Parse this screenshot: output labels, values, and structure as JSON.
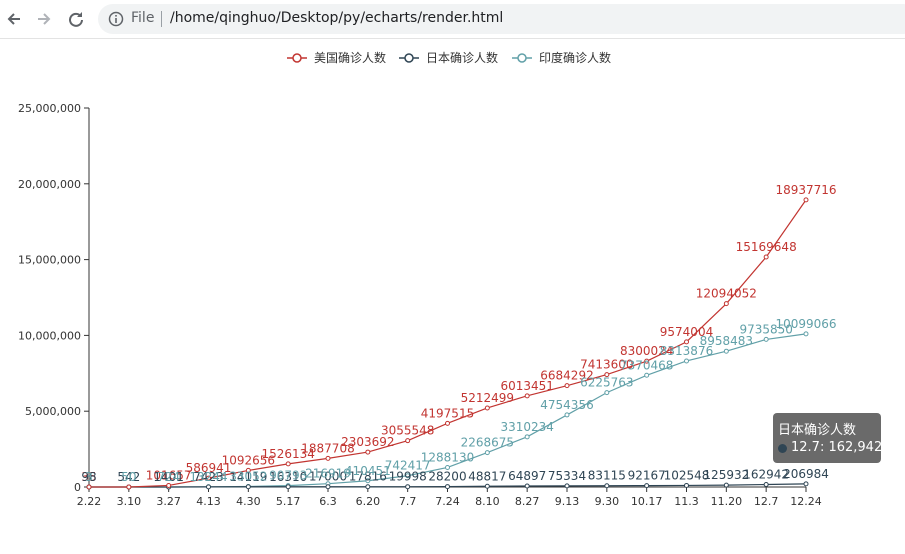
{
  "browser": {
    "file_label": "File",
    "url": "/home/qinghuo/Desktop/py/echarts/render.html",
    "icons": [
      "back-arrow-icon",
      "forward-arrow-icon",
      "reload-icon",
      "info-icon"
    ]
  },
  "tooltip": {
    "series_name": "日本确诊人数",
    "value_text": "12.7: 162,942",
    "dot_color": "#2f4554"
  },
  "chart_data": {
    "type": "line",
    "categories": [
      "2.22",
      "3.10",
      "3.27",
      "4.13",
      "4.30",
      "5.17",
      "6.3",
      "6.20",
      "7.7",
      "7.24",
      "8.10",
      "8.27",
      "9.13",
      "9.30",
      "10.17",
      "11.3",
      "11.20",
      "12.7",
      "12.24"
    ],
    "y_ticks": [
      "0",
      "5,000,000",
      "10,000,000",
      "15,000,000",
      "20,000,000",
      "25,000,000"
    ],
    "ylim": [
      0,
      25000000
    ],
    "legend_position": "top-center",
    "grid": false,
    "series": [
      {
        "name": "美国确诊人数",
        "color": "#c23531",
        "values": [
          35,
          472,
          101657,
          586941,
          1092656,
          1526134,
          1887708,
          2303692,
          3055548,
          4197515,
          5212499,
          6013451,
          6684292,
          7413600,
          8300024,
          9574004,
          12094052,
          15169648,
          18937716
        ]
      },
      {
        "name": "日本确诊人数",
        "color": "#2f4554",
        "values": [
          98,
          542,
          1401,
          7423,
          14119,
          16310,
          17000,
          17816,
          19998,
          28200,
          48817,
          64897,
          75334,
          83115,
          92167,
          102548,
          125932,
          162942,
          206984
        ]
      },
      {
        "name": "印度确诊人数",
        "color": "#61a0a8",
        "values": [
          3,
          50,
          724,
          13244,
          33052,
          90793,
          216919,
          410451,
          742417,
          1288130,
          2268675,
          3310234,
          4754356,
          6225763,
          7370468,
          8313876,
          8958483,
          9735850,
          10099066
        ]
      }
    ],
    "data_labels": [
      {
        "series": 0,
        "index": 0,
        "text": "35"
      },
      {
        "series": 0,
        "index": 2,
        "text": "101657"
      },
      {
        "series": 0,
        "index": 3,
        "text": "586941"
      },
      {
        "series": 0,
        "index": 4,
        "text": "1092656"
      },
      {
        "series": 0,
        "index": 5,
        "text": "1526134"
      },
      {
        "series": 0,
        "index": 6,
        "text": "1887708"
      },
      {
        "series": 0,
        "index": 7,
        "text": "2303692"
      },
      {
        "series": 0,
        "index": 8,
        "text": "3055548"
      },
      {
        "series": 0,
        "index": 9,
        "text": "4197515"
      },
      {
        "series": 0,
        "index": 10,
        "text": "5212499"
      },
      {
        "series": 0,
        "index": 11,
        "text": "6013451"
      },
      {
        "series": 0,
        "index": 12,
        "text": "6684292"
      },
      {
        "series": 0,
        "index": 13,
        "text": "7413600"
      },
      {
        "series": 0,
        "index": 14,
        "text": "8300024"
      },
      {
        "series": 0,
        "index": 15,
        "text": "9574004"
      },
      {
        "series": 0,
        "index": 16,
        "text": "12094052"
      },
      {
        "series": 0,
        "index": 17,
        "text": "15169648"
      },
      {
        "series": 0,
        "index": 18,
        "text": "18937716"
      },
      {
        "series": 1,
        "index": 0,
        "text": "98"
      },
      {
        "series": 1,
        "index": 1,
        "text": "542"
      },
      {
        "series": 1,
        "index": 2,
        "text": "1401"
      },
      {
        "series": 1,
        "index": 3,
        "text": "7423"
      },
      {
        "series": 1,
        "index": 4,
        "text": "14119"
      },
      {
        "series": 1,
        "index": 5,
        "text": "16310"
      },
      {
        "series": 1,
        "index": 6,
        "text": "17000"
      },
      {
        "series": 1,
        "index": 7,
        "text": "17816"
      },
      {
        "series": 1,
        "index": 8,
        "text": "19998"
      },
      {
        "series": 1,
        "index": 9,
        "text": "28200"
      },
      {
        "series": 1,
        "index": 10,
        "text": "48817"
      },
      {
        "series": 1,
        "index": 11,
        "text": "64897"
      },
      {
        "series": 1,
        "index": 12,
        "text": "75334"
      },
      {
        "series": 1,
        "index": 13,
        "text": "83115"
      },
      {
        "series": 1,
        "index": 14,
        "text": "92167"
      },
      {
        "series": 1,
        "index": 15,
        "text": "102548"
      },
      {
        "series": 1,
        "index": 16,
        "text": "125932"
      },
      {
        "series": 1,
        "index": 17,
        "text": "162942"
      },
      {
        "series": 1,
        "index": 18,
        "text": "206984"
      },
      {
        "series": 2,
        "index": 0,
        "text": "3"
      },
      {
        "series": 2,
        "index": 1,
        "text": "50"
      },
      {
        "series": 2,
        "index": 2,
        "text": "724"
      },
      {
        "series": 2,
        "index": 3,
        "text": "13244"
      },
      {
        "series": 2,
        "index": 4,
        "text": "33052"
      },
      {
        "series": 2,
        "index": 5,
        "text": "90793"
      },
      {
        "series": 2,
        "index": 6,
        "text": "216919"
      },
      {
        "series": 2,
        "index": 7,
        "text": "410451"
      },
      {
        "series": 2,
        "index": 8,
        "text": "742417"
      },
      {
        "series": 2,
        "index": 9,
        "text": "1288130"
      },
      {
        "series": 2,
        "index": 10,
        "text": "2268675"
      },
      {
        "series": 2,
        "index": 11,
        "text": "3310234"
      },
      {
        "series": 2,
        "index": 12,
        "text": "4754356"
      },
      {
        "series": 2,
        "index": 13,
        "text": "6225763"
      },
      {
        "series": 2,
        "index": 14,
        "text": "7370468"
      },
      {
        "series": 2,
        "index": 15,
        "text": "8313876"
      },
      {
        "series": 2,
        "index": 16,
        "text": "8958483"
      },
      {
        "series": 2,
        "index": 17,
        "text": "9735850"
      },
      {
        "series": 2,
        "index": 18,
        "text": "10099066"
      }
    ]
  }
}
